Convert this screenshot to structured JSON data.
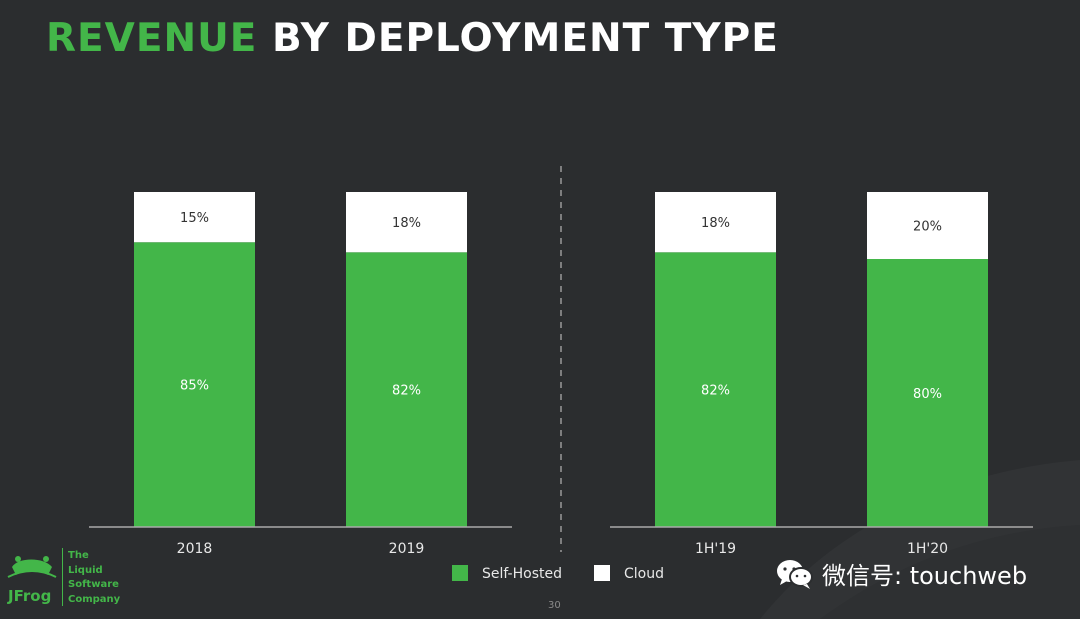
{
  "title": {
    "highlight": "REVENUE",
    "rest": "BY DEPLOYMENT TYPE"
  },
  "colors": {
    "self_hosted": "#43b649",
    "cloud": "#ffffff",
    "background": "#2b2d2f",
    "axis": "#aaaaaa",
    "divider": "#9a9a9a"
  },
  "chart_data": {
    "type": "bar",
    "stacked": true,
    "unit": "%",
    "ylim": [
      0,
      100
    ],
    "grid": false,
    "legend_position": "bottom",
    "groups": [
      {
        "categories": [
          "2018",
          "2019"
        ]
      },
      {
        "categories": [
          "1H'19",
          "1H'20"
        ]
      }
    ],
    "categories": [
      "2018",
      "2019",
      "1H'19",
      "1H'20"
    ],
    "series": [
      {
        "name": "Self-Hosted",
        "values": [
          85,
          82,
          82,
          80
        ],
        "labels": [
          "85%",
          "82%",
          "82%",
          "80%"
        ]
      },
      {
        "name": "Cloud",
        "values": [
          15,
          18,
          18,
          20
        ],
        "labels": [
          "15%",
          "18%",
          "18%",
          "20%"
        ]
      }
    ]
  },
  "legend": {
    "self_hosted": "Self-Hosted",
    "cloud": "Cloud"
  },
  "logo": {
    "brand": "JFrog",
    "tagline": [
      "The",
      "Liquid",
      "Software",
      "Company"
    ]
  },
  "page_number": "30",
  "watermark": "微信号: touchweb"
}
